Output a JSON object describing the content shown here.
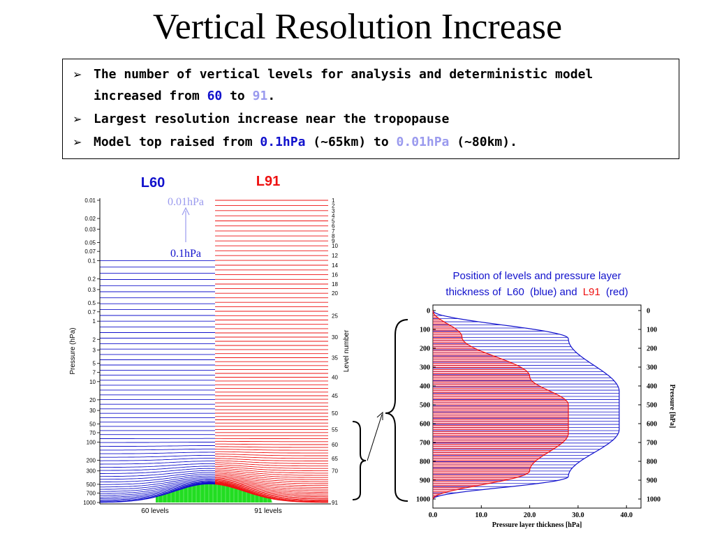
{
  "slide": {
    "title": "Vertical Resolution Increase"
  },
  "bullets": {
    "b1_line1": "The number of vertical levels for analysis and deterministic model",
    "b1_line2_pre": "increased from",
    "b1_l60": "60",
    "b1_to": "to",
    "b1_l91": "91",
    "b1_end": ".",
    "b2": "Largest resolution increase near the tropopause",
    "b3_pre": "Model top raised from",
    "b3_old": "0.1hPa",
    "b3_mid": "(~65km) to",
    "b3_new": "0.01hPa",
    "b3_end": "(~80km)."
  },
  "colors": {
    "l60": "#1111cc",
    "l91": "#ee1111",
    "lavender": "#9a9aee",
    "ground": "#22dd22"
  },
  "chart_data": [
    {
      "type": "diagram",
      "labels": {
        "l60": "L60",
        "l91": "L91",
        "top_new": "0.01hPa",
        "top_old": "0.1hPa",
        "ylabel": "Pressure (hPa)",
        "ylabel_right": "Level number",
        "xlabel_left": "60 levels",
        "xlabel_right": "91 levels"
      },
      "pressure_ticks": [
        "0.01",
        "0.02",
        "0.03",
        "0.05",
        "0.07",
        "0.1",
        "0.2",
        "0.3",
        "0.5",
        "0.7",
        "1",
        "2",
        "3",
        "5",
        "7",
        "10",
        "20",
        "30",
        "50",
        "70",
        "100",
        "200",
        "300",
        "500",
        "700",
        "1000"
      ],
      "level_ticks": [
        "1",
        "2",
        "3",
        "4",
        "5",
        "6",
        "7",
        "8",
        "9",
        "10",
        "12",
        "14",
        "16",
        "18",
        "20",
        "25",
        "30",
        "35",
        "40",
        "45",
        "50",
        "55",
        "60",
        "65",
        "70",
        "91"
      ],
      "l60_levels": 60,
      "l91_levels": 91,
      "l60_top_hPa": 0.1,
      "l91_top_hPa": 0.01
    },
    {
      "type": "line",
      "title_parts": [
        "Position of levels and pressure layer",
        "thickness of",
        "L60",
        "(blue) and",
        "L91",
        "(red)"
      ],
      "xlabel": "Pressure layer thickness [hPa]",
      "ylabel": "Pressure [hPa]",
      "x_ticks": [
        "0.0",
        "10.0",
        "20.0",
        "30.0",
        "40.0"
      ],
      "y_ticks": [
        "0",
        "100",
        "200",
        "300",
        "400",
        "500",
        "600",
        "700",
        "800",
        "900",
        "1000"
      ],
      "xlim": [
        0,
        43
      ],
      "ylim": [
        1000,
        0
      ],
      "series": [
        {
          "name": "L60",
          "color": "#1111cc",
          "x": [
            0.0,
            28.0,
            38.5,
            38.5,
            28.0,
            0.0
          ],
          "y": [
            0,
            150,
            430,
            630,
            880,
            1000
          ]
        },
        {
          "name": "L91",
          "color": "#ee1111",
          "x": [
            0.0,
            6.0,
            20.0,
            28.0,
            28.0,
            20.0,
            0.0
          ],
          "y": [
            0,
            140,
            350,
            500,
            650,
            850,
            1000
          ]
        }
      ]
    }
  ]
}
